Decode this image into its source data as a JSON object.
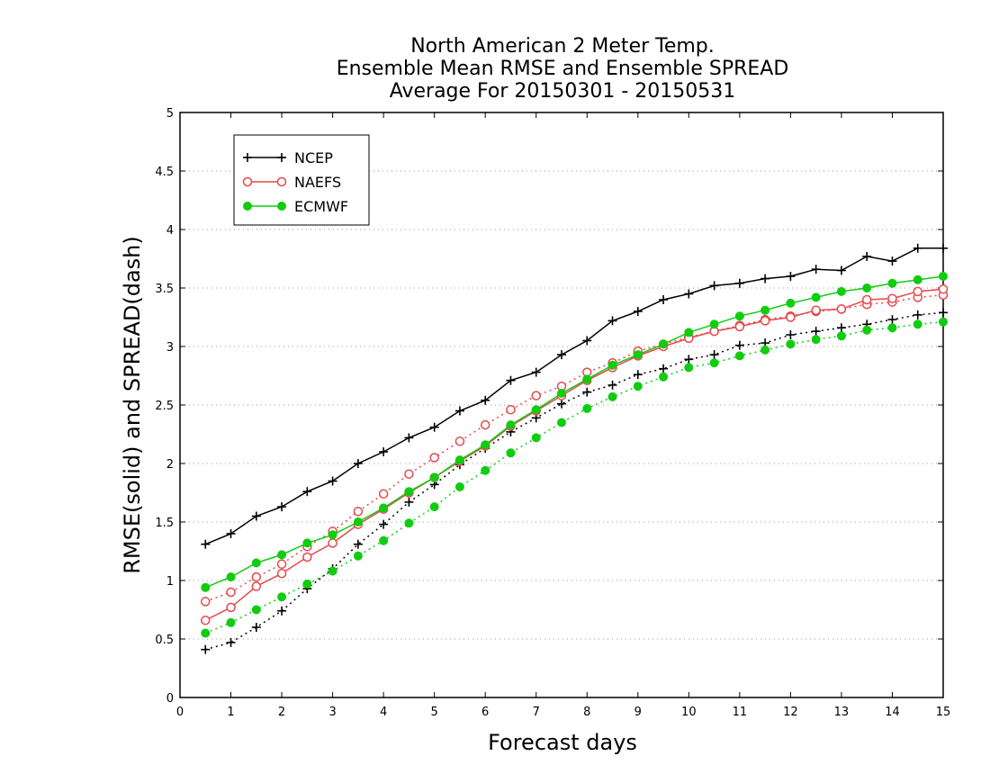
{
  "chart_data": {
    "type": "line",
    "title_lines": [
      "North American 2 Meter Temp.",
      "Ensemble Mean RMSE and Ensemble SPREAD",
      "Average For 20150301 - 20150531"
    ],
    "xlabel": "Forecast days",
    "ylabel": "RMSE(solid) and SPREAD(dash)",
    "xlim": [
      0,
      15
    ],
    "ylim": [
      0,
      5
    ],
    "x_ticks": [
      0,
      1,
      2,
      3,
      4,
      5,
      6,
      7,
      8,
      9,
      10,
      11,
      12,
      13,
      14,
      15
    ],
    "x_tick_labels": [
      "0",
      "1",
      "2",
      "3",
      "4",
      "5",
      "6",
      "7",
      "8",
      "9",
      "10",
      "11",
      "12",
      "13",
      "14",
      "15"
    ],
    "y_ticks": [
      0,
      0.5,
      1,
      1.5,
      2,
      2.5,
      3,
      3.5,
      4,
      4.5,
      5
    ],
    "y_tick_labels": [
      "0",
      "0.5",
      "1",
      "1.5",
      "2",
      "2.5",
      "3",
      "3.5",
      "4",
      "4.5",
      "5"
    ],
    "grid": "horizontal dotted",
    "legend_position": "top-left",
    "x": [
      0.5,
      1,
      1.5,
      2,
      2.5,
      3,
      3.5,
      4,
      4.5,
      5,
      5.5,
      6,
      6.5,
      7,
      7.5,
      8,
      8.5,
      9,
      9.5,
      10,
      10.5,
      11,
      11.5,
      12,
      12.5,
      13,
      13.5,
      14,
      14.5,
      15
    ],
    "series": [
      {
        "name": "NCEP",
        "color": "#000000",
        "marker": "plus",
        "rmse": [
          1.31,
          1.4,
          1.55,
          1.63,
          1.76,
          1.85,
          2.0,
          2.1,
          2.22,
          2.31,
          2.45,
          2.54,
          2.71,
          2.78,
          2.93,
          3.05,
          3.22,
          3.3,
          3.4,
          3.45,
          3.52,
          3.54,
          3.58,
          3.6,
          3.66,
          3.65,
          3.77,
          3.73,
          3.84,
          3.84
        ],
        "spread": [
          0.41,
          0.47,
          0.6,
          0.74,
          0.93,
          1.1,
          1.31,
          1.48,
          1.67,
          1.82,
          1.99,
          2.13,
          2.27,
          2.39,
          2.51,
          2.61,
          2.67,
          2.76,
          2.81,
          2.89,
          2.93,
          3.01,
          3.03,
          3.1,
          3.13,
          3.16,
          3.19,
          3.23,
          3.27,
          3.29
        ]
      },
      {
        "name": "NAEFS",
        "color": "#e8474a",
        "marker": "open-circle",
        "rmse": [
          0.66,
          0.77,
          0.95,
          1.06,
          1.2,
          1.32,
          1.48,
          1.61,
          1.75,
          1.88,
          2.02,
          2.15,
          2.32,
          2.45,
          2.58,
          2.71,
          2.82,
          2.92,
          3.0,
          3.07,
          3.13,
          3.17,
          3.22,
          3.25,
          3.31,
          3.32,
          3.4,
          3.41,
          3.47,
          3.49
        ],
        "spread": [
          0.82,
          0.9,
          1.03,
          1.14,
          1.29,
          1.42,
          1.59,
          1.74,
          1.91,
          2.05,
          2.19,
          2.33,
          2.46,
          2.58,
          2.66,
          2.78,
          2.86,
          2.96,
          3.02,
          3.08,
          3.13,
          3.18,
          3.23,
          3.26,
          3.3,
          3.32,
          3.36,
          3.38,
          3.42,
          3.44
        ]
      },
      {
        "name": "ECMWF",
        "color": "#11cc11",
        "marker": "filled-circle",
        "rmse": [
          0.94,
          1.03,
          1.15,
          1.22,
          1.32,
          1.39,
          1.5,
          1.62,
          1.76,
          1.88,
          2.03,
          2.16,
          2.33,
          2.46,
          2.6,
          2.72,
          2.84,
          2.93,
          3.02,
          3.12,
          3.19,
          3.26,
          3.31,
          3.37,
          3.42,
          3.47,
          3.5,
          3.54,
          3.57,
          3.6
        ],
        "spread": [
          0.55,
          0.64,
          0.75,
          0.86,
          0.97,
          1.08,
          1.21,
          1.34,
          1.49,
          1.63,
          1.8,
          1.94,
          2.09,
          2.22,
          2.35,
          2.47,
          2.57,
          2.66,
          2.74,
          2.82,
          2.86,
          2.92,
          2.97,
          3.02,
          3.06,
          3.09,
          3.14,
          3.16,
          3.19,
          3.21
        ]
      }
    ]
  }
}
